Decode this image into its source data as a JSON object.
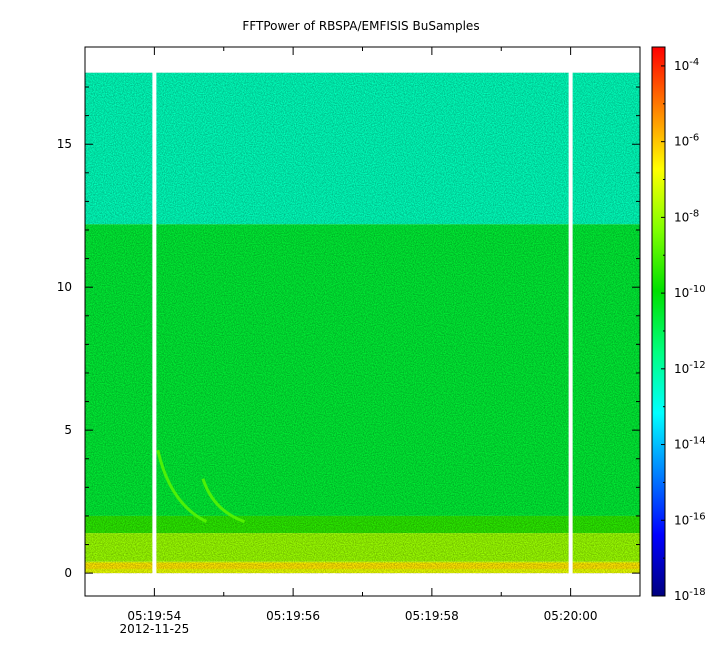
{
  "chart_data": {
    "type": "heatmap",
    "title": "FFTPower of RBSPA/EMFISIS  BuSamples",
    "x_axis": {
      "range": [
        "05:19:53.0",
        "05:20:01.0"
      ],
      "ticks": [
        {
          "time_s": 54,
          "label": "05:19:54"
        },
        {
          "time_s": 56,
          "label": "05:19:56"
        },
        {
          "time_s": 58,
          "label": "05:19:58"
        },
        {
          "time_s": 60,
          "label": "05:20:00"
        }
      ],
      "minor_ticks_s": [
        55,
        57,
        59
      ],
      "date_label": "2012-11-25"
    },
    "y_axis": {
      "range": [
        -0.8,
        18.4
      ],
      "ticks": [
        0,
        5,
        10,
        15
      ]
    },
    "colorbar": {
      "scale": "log",
      "range_exp": [
        -18,
        -3.5
      ],
      "ticks": [
        {
          "exp": -4,
          "base": "10",
          "sup": "-4"
        },
        {
          "exp": -6,
          "base": "10",
          "sup": "-6"
        },
        {
          "exp": -8,
          "base": "10",
          "sup": "-8"
        },
        {
          "exp": -10,
          "base": "10",
          "sup": "-10"
        },
        {
          "exp": -12,
          "base": "10",
          "sup": "-12"
        },
        {
          "exp": -14,
          "base": "10",
          "sup": "-14"
        },
        {
          "exp": -16,
          "base": "10",
          "sup": "-16"
        },
        {
          "exp": -18,
          "base": "10",
          "sup": "-18"
        }
      ],
      "colormap": [
        "#00007f",
        "#0000ff",
        "#0080ff",
        "#00ffff",
        "#00ff80",
        "#00e000",
        "#80ff00",
        "#ffff00",
        "#ff8000",
        "#ff0000"
      ]
    },
    "data_coverage": {
      "time_range_s": [
        53.0,
        61.0
      ],
      "freq_max": 17.5
    },
    "gaps_s": [
      54.0,
      60.0
    ],
    "bands": [
      {
        "freq_range": [
          12.2,
          17.5
        ],
        "log_power": -12.3
      },
      {
        "freq_range": [
          2.0,
          12.2
        ],
        "log_power": -10.6
      },
      {
        "freq_range": [
          1.4,
          2.0
        ],
        "log_power": -9.4
      },
      {
        "freq_range": [
          0.4,
          1.4
        ],
        "log_power": -8.0
      },
      {
        "freq_range": [
          0.0,
          0.4
        ],
        "log_power": -7.0
      }
    ],
    "features": [
      {
        "name": "chorus-element-1",
        "t_start_s": 54.05,
        "f_start": 4.3,
        "t_end_s": 54.75,
        "f_end": 1.8
      },
      {
        "name": "chorus-element-2",
        "t_start_s": 54.7,
        "f_start": 3.3,
        "t_end_s": 55.3,
        "f_end": 1.8
      }
    ]
  }
}
